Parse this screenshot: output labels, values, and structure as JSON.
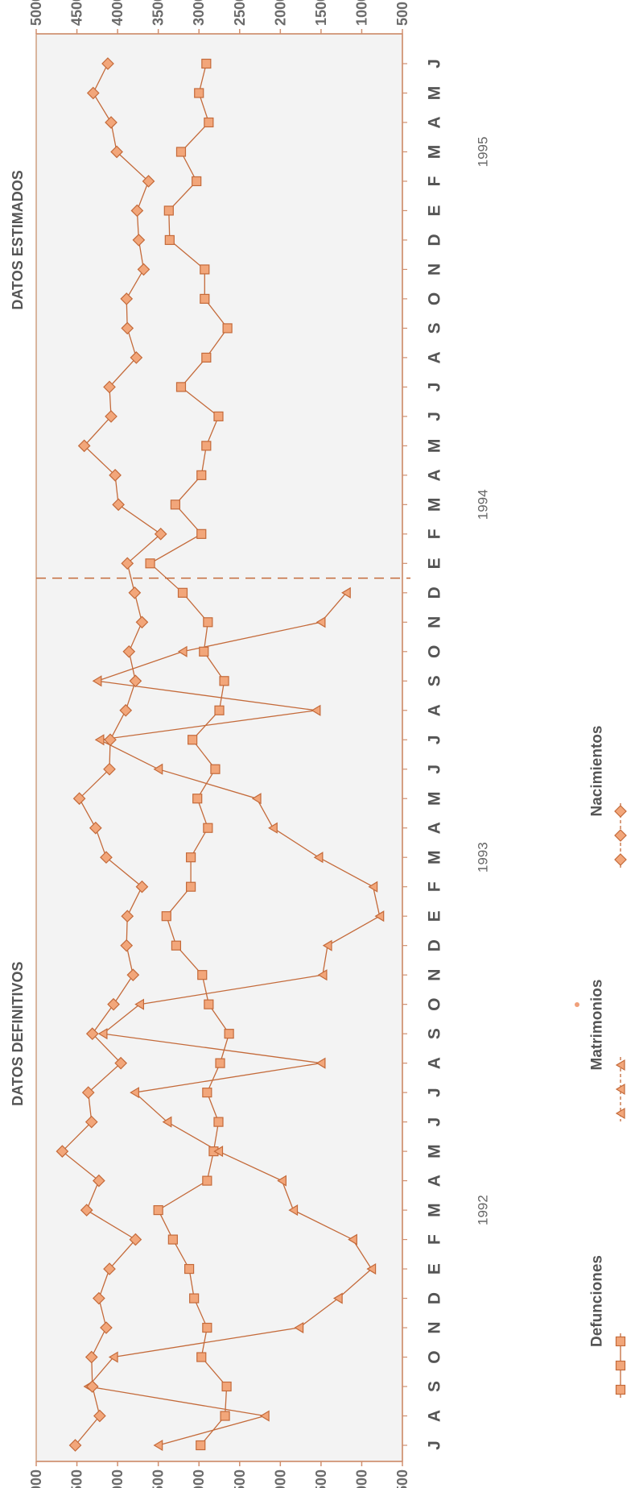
{
  "chart_data": {
    "type": "line",
    "orientation": "rotated-90-ccw",
    "value_axis": {
      "ticks": [
        "5000",
        "4500",
        "4000",
        "3500",
        "3000",
        "2500",
        "2000",
        "1500",
        "1000",
        "500"
      ],
      "range": [
        500,
        5000
      ]
    },
    "time_axis": {
      "months": [
        "J",
        "A",
        "S",
        "O",
        "N",
        "D",
        "E",
        "F",
        "M",
        "A",
        "M",
        "J",
        "J",
        "A",
        "S",
        "O",
        "N",
        "D",
        "E",
        "F",
        "M",
        "A",
        "M",
        "J",
        "J",
        "A",
        "S",
        "O",
        "N",
        "D",
        "E",
        "F",
        "M",
        "A",
        "M",
        "J",
        "J",
        "A",
        "S",
        "O",
        "N",
        "D",
        "E",
        "F",
        "M",
        "A",
        "M",
        "J"
      ],
      "years": [
        {
          "label": "1992",
          "month_index": 8
        },
        {
          "label": "1993",
          "month_index": 20
        },
        {
          "label": "1994",
          "month_index": 32
        },
        {
          "label": "1995",
          "month_index": 44
        }
      ],
      "sections": [
        {
          "label": "DATOS DEFINITIVOS",
          "month_index": 14
        },
        {
          "label": "DATOS ESTIMADOS",
          "month_index": 41
        }
      ],
      "divider_after_month_index": 29
    },
    "series": [
      {
        "name": "Defunciones",
        "color": "#c46a3a",
        "marker": "square",
        "values": [
          2980,
          2680,
          2660,
          2970,
          2900,
          3060,
          3120,
          3320,
          3500,
          2900,
          2820,
          2760,
          2900,
          2740,
          2630,
          2880,
          2960,
          3280,
          3400,
          3100,
          3100,
          2890,
          3020,
          2800,
          3080,
          2750,
          2690,
          2940,
          2890,
          3200,
          3600,
          2970,
          3290,
          2970,
          2910,
          2760,
          3220,
          2910,
          2650,
          2930,
          2930,
          3360,
          3370,
          3030,
          3220,
          2880,
          3000,
          2910
        ]
      },
      {
        "name": "Matrimonios",
        "color": "#c46a3a",
        "marker": "triangle",
        "values": [
          3500,
          2190,
          4360,
          4050,
          1770,
          1290,
          880,
          1110,
          1840,
          1980,
          2760,
          3390,
          3790,
          1500,
          4180,
          3730,
          1480,
          1420,
          780,
          860,
          1530,
          2090,
          2290,
          3500,
          4220,
          1560,
          4250,
          3200,
          1500,
          1190
        ]
      },
      {
        "name": "Nacimientos",
        "color": "#c46a3a",
        "marker": "diamond",
        "values": [
          4520,
          4220,
          4310,
          4320,
          4140,
          4230,
          4100,
          3780,
          4380,
          4230,
          4680,
          4320,
          4360,
          3960,
          4310,
          4050,
          3810,
          3890,
          3880,
          3700,
          4140,
          4270,
          4470,
          4100,
          4090,
          3900,
          3780,
          3860,
          3700,
          3790,
          3880,
          3470,
          3990,
          4030,
          4410,
          4080,
          4100,
          3770,
          3880,
          3890,
          3680,
          3740,
          3760,
          3620,
          4010,
          4080,
          4300,
          4120
        ]
      }
    ]
  }
}
